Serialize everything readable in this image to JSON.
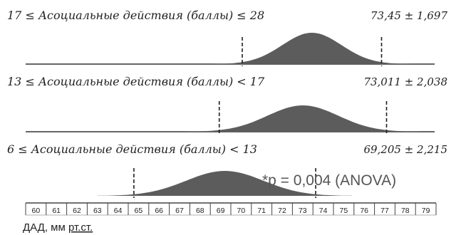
{
  "chart_data": {
    "type": "area",
    "series": [
      {
        "name": "17 ≤ Асоциальные действия (баллы) ≤ 28",
        "stat": "73,45 ± 1,697",
        "mean": 73.45,
        "sd": 1.697
      },
      {
        "name": "13 ≤ Асоциальные действия (баллы) < 17",
        "stat": "73,011 ± 2,038",
        "mean": 73.011,
        "sd": 2.038
      },
      {
        "name": "6 ≤ Асоциальные действия (баллы) < 13",
        "stat": "69,205 ± 2,215",
        "mean": 69.205,
        "sd": 2.215
      }
    ],
    "x_ticks": [
      "60",
      "61",
      "62",
      "63",
      "64",
      "65",
      "66",
      "67",
      "68",
      "69",
      "70",
      "71",
      "72",
      "73",
      "74",
      "75",
      "76",
      "77",
      "78",
      "79"
    ],
    "xlim": [
      59.5,
      79.5
    ],
    "annotation": "*p = 0,004 (ANOVA)",
    "xlabel_prefix": "ДАД, мм ",
    "xlabel_unit": "рт.ст.",
    "colors": {
      "fill": "#5c5c5c",
      "line": "#333333"
    }
  }
}
